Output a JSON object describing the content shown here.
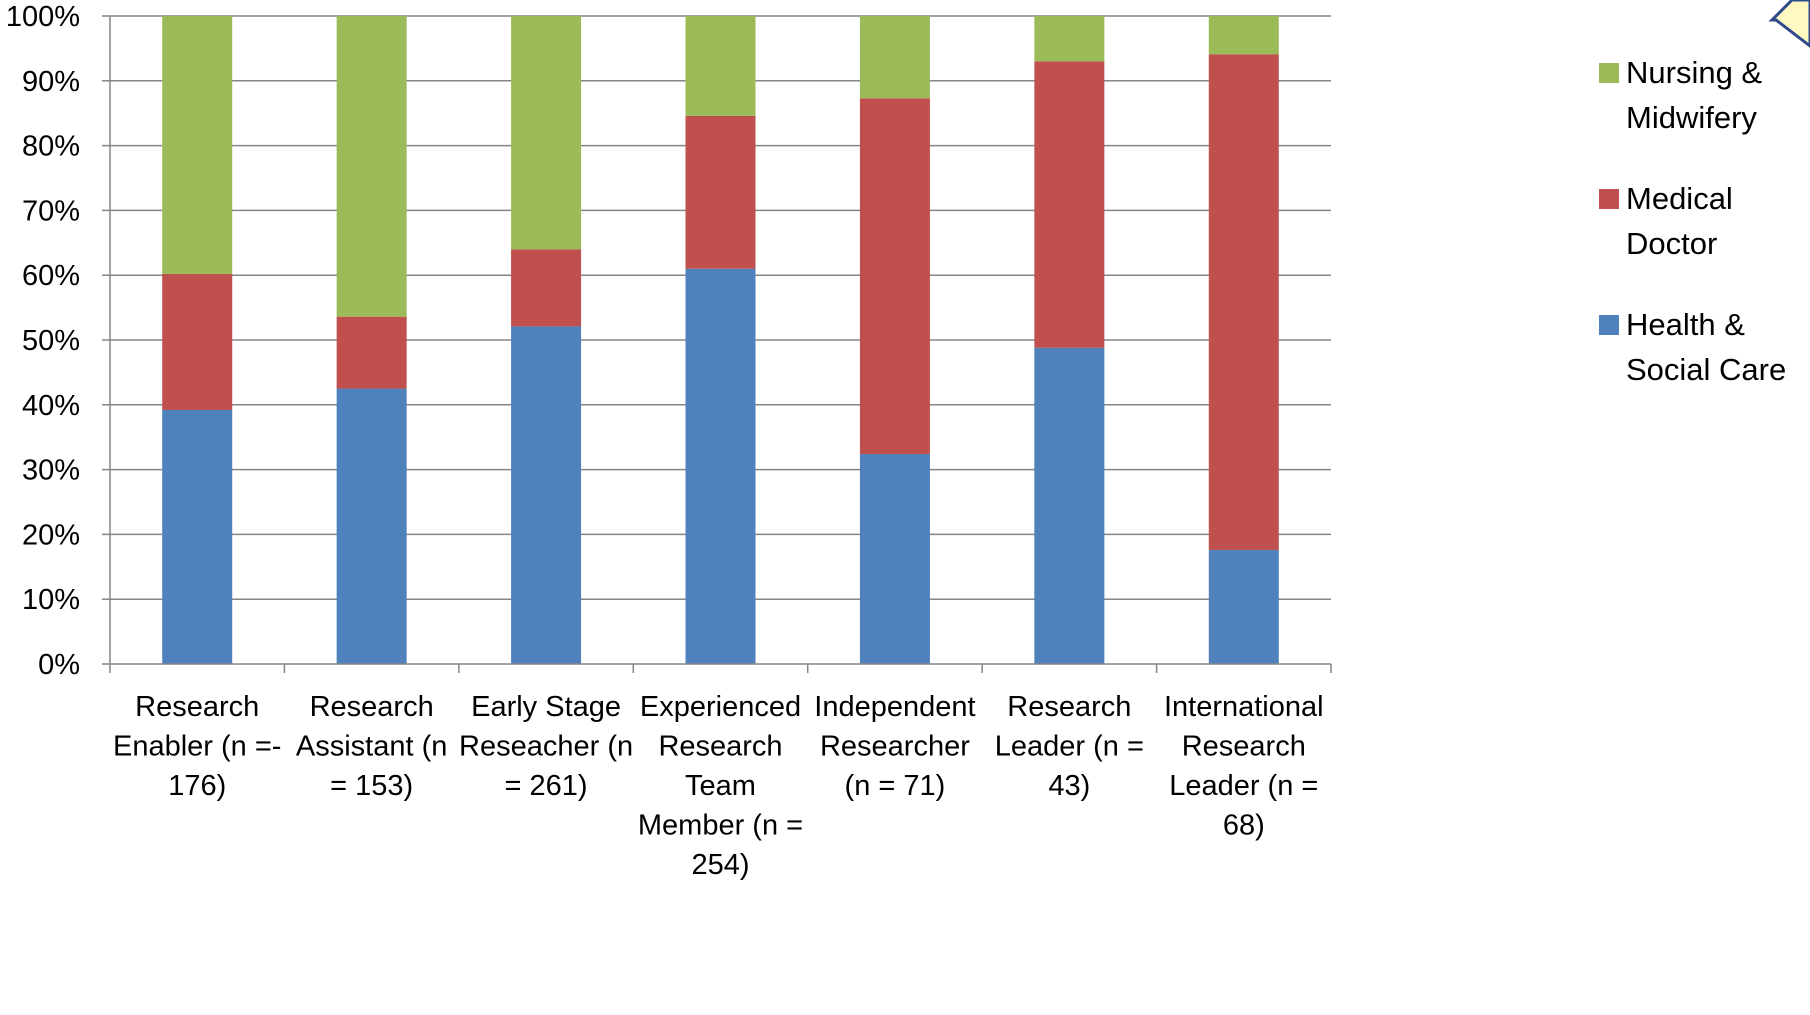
{
  "colors": {
    "health_social_care": "#4F81BD",
    "medical_doctor": "#C0504D",
    "nursing_midwifery": "#9BBB59",
    "gridline": "#868686",
    "axis": "#868686"
  },
  "chart_data": {
    "type": "bar",
    "stacked": true,
    "percent_stacked": true,
    "title": "",
    "xlabel": "",
    "ylabel": "",
    "ylim": [
      0,
      100
    ],
    "y_ticks": [
      "0%",
      "10%",
      "20%",
      "30%",
      "40%",
      "50%",
      "60%",
      "70%",
      "80%",
      "90%",
      "100%"
    ],
    "grid": true,
    "legend_position": "right",
    "categories": [
      [
        "Research",
        "Enabler (n =-",
        "176)"
      ],
      [
        "Research",
        "Assistant (n",
        "= 153)"
      ],
      [
        "Early Stage",
        "Reseacher (n",
        "= 261)"
      ],
      [
        "Experienced",
        "Research",
        "Team",
        "Member (n =",
        "254)"
      ],
      [
        "Independent",
        "Researcher",
        "(n = 71)"
      ],
      [
        "Research",
        "Leader (n =",
        "43)"
      ],
      [
        "International",
        "Research",
        "Leader (n =",
        "68)"
      ]
    ],
    "series": [
      {
        "name": "Health & Social Care",
        "legend_lines": [
          "Health &",
          "Social Care"
        ],
        "color": "#4F81BD",
        "values": [
          39.2,
          42.5,
          52.1,
          61.0,
          32.4,
          48.8,
          17.6
        ]
      },
      {
        "name": "Medical Doctor",
        "legend_lines": [
          "Medical",
          "Doctor"
        ],
        "color": "#C0504D",
        "values": [
          21.0,
          11.1,
          11.9,
          23.6,
          54.9,
          44.2,
          76.5
        ]
      },
      {
        "name": "Nursing & Midwifery",
        "legend_lines": [
          "Nursing &",
          "Midwifery"
        ],
        "color": "#9BBB59",
        "values": [
          39.8,
          46.4,
          36.0,
          15.4,
          12.7,
          7.0,
          5.9
        ]
      }
    ]
  }
}
